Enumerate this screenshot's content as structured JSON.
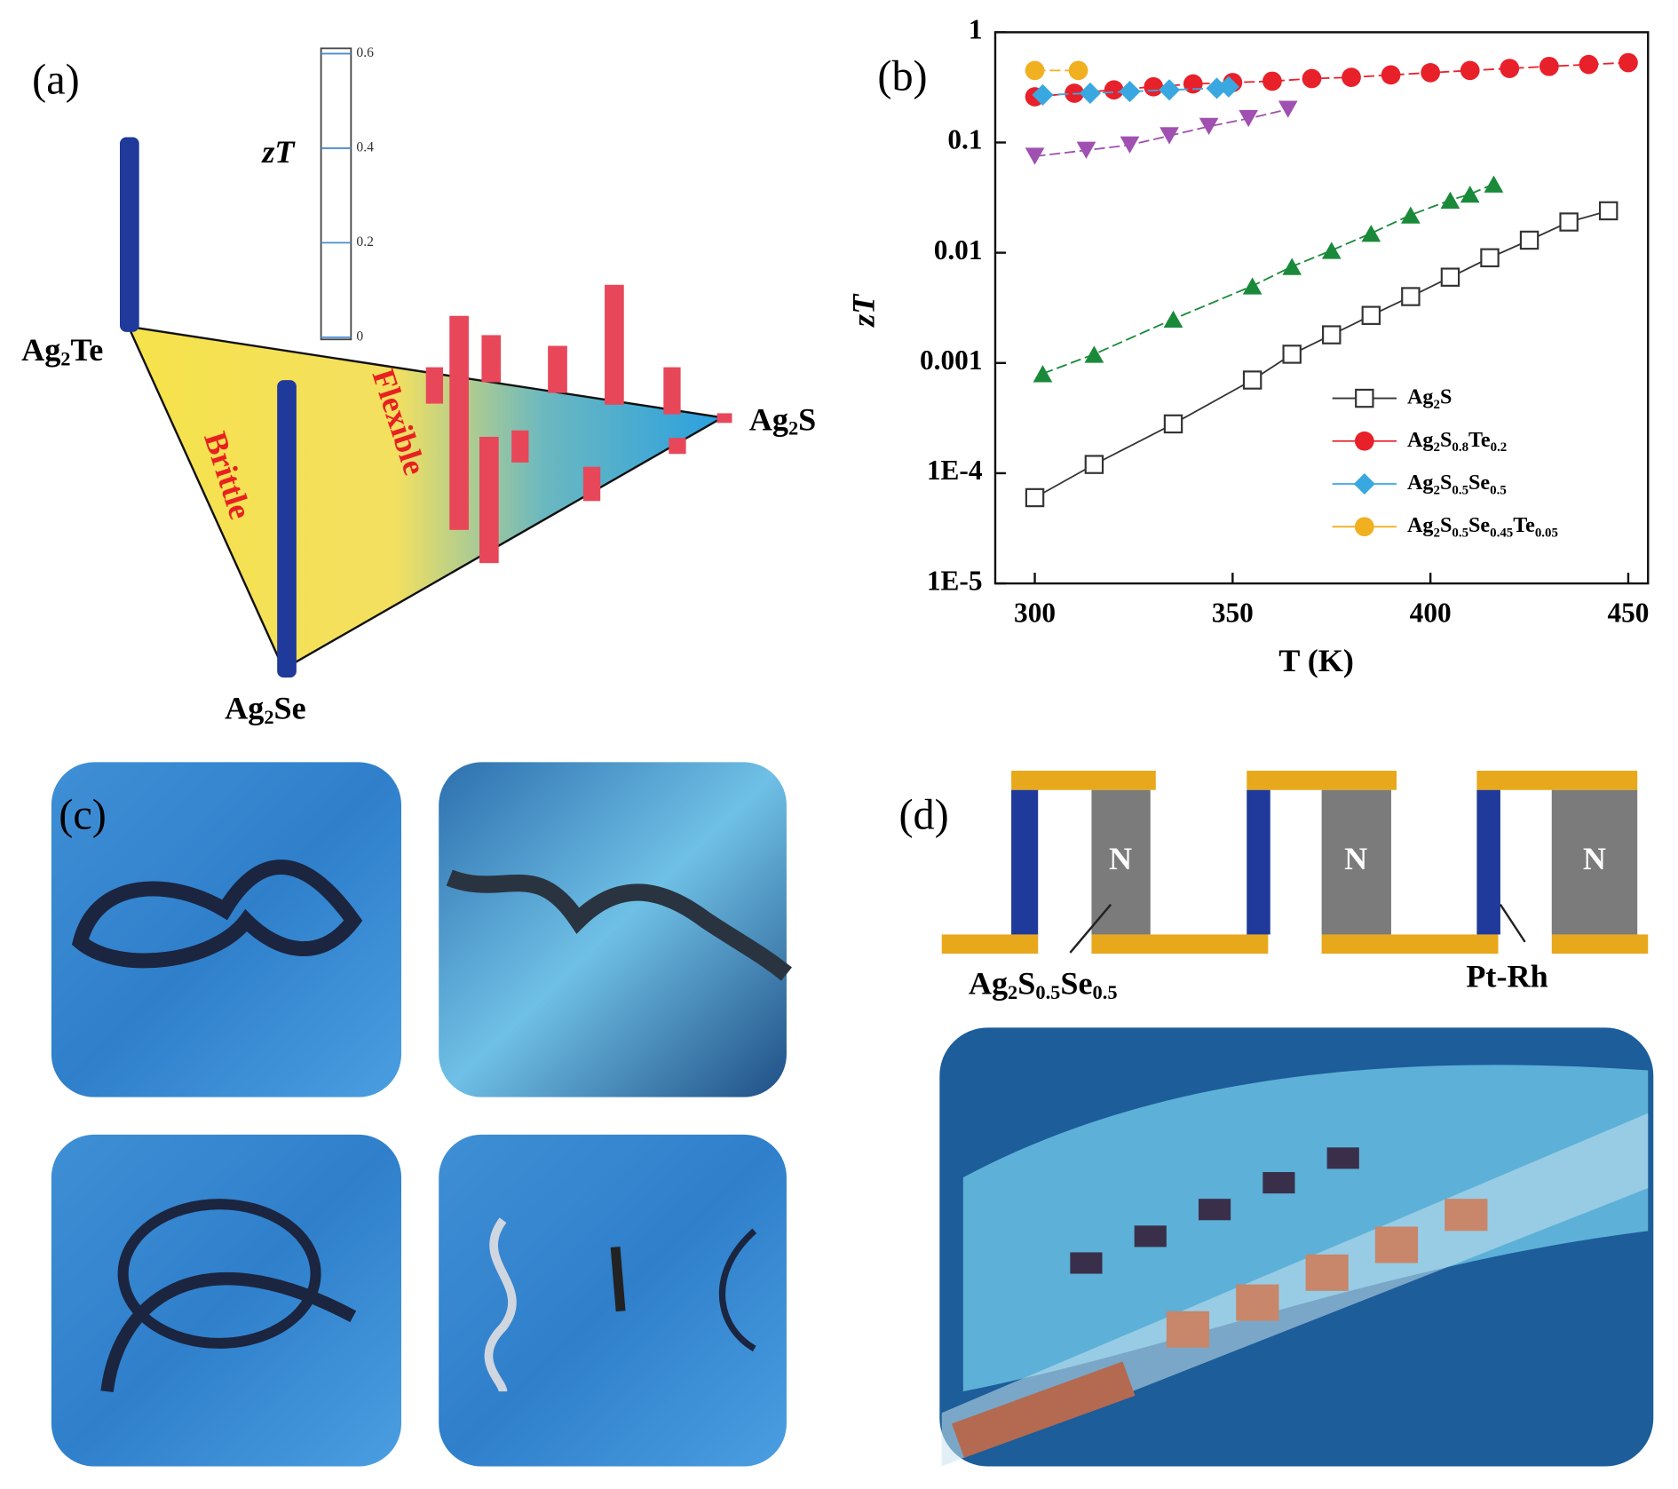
{
  "panel_a": {
    "label": "(a)",
    "colorbar_title": "zT",
    "colorbar_ticks": [
      0,
      0.2,
      0.4,
      0.6
    ],
    "vertices": [
      "Ag2Te",
      "Ag2S",
      "Ag2Se"
    ],
    "regions": [
      "Brittle",
      "Flexible"
    ]
  },
  "chart_data": {
    "type": "line",
    "panel_label": "(b)",
    "xlabel": "T (K)",
    "ylabel": "zT",
    "xlim": [
      290,
      455
    ],
    "xticks": [
      300,
      350,
      400,
      450
    ],
    "ylim": [
      1e-05,
      1
    ],
    "yticks": [
      {
        "value": 1e-05,
        "label": "1E-5"
      },
      {
        "value": 0.0001,
        "label": "1E-4"
      },
      0.001,
      0.01,
      0.1,
      1
    ],
    "log_y": true,
    "legend": "lower right",
    "series": [
      {
        "name": "Ag2S",
        "color": "#333333",
        "marker": "square-open",
        "x": [
          300,
          315,
          335,
          355,
          365,
          375,
          385,
          395,
          405,
          415,
          425,
          435,
          445
        ],
        "values": [
          6e-05,
          0.00012,
          0.00028,
          0.0007,
          0.0012,
          0.0018,
          0.0027,
          0.004,
          0.006,
          0.009,
          0.013,
          0.019,
          0.024
        ]
      },
      {
        "name": "Ag2S0.8Te0.2",
        "color": "#e8202a",
        "marker": "circle",
        "x": [
          300,
          310,
          320,
          330,
          340,
          350,
          360,
          370,
          380,
          390,
          400,
          410,
          420,
          430,
          440,
          450
        ],
        "values": [
          0.26,
          0.28,
          0.3,
          0.32,
          0.34,
          0.35,
          0.36,
          0.38,
          0.39,
          0.41,
          0.43,
          0.45,
          0.47,
          0.49,
          0.51,
          0.53
        ]
      },
      {
        "name": "Ag2S0.5Se0.5",
        "color": "#3aa8e0",
        "marker": "diamond",
        "x": [
          302,
          314,
          324,
          334,
          346,
          349
        ],
        "values": [
          0.27,
          0.28,
          0.29,
          0.3,
          0.31,
          0.32
        ]
      },
      {
        "name": "Ag2S0.5Se0.45Te0.05",
        "color": "#f0b020",
        "marker": "circle",
        "x": [
          300,
          311
        ],
        "values": [
          0.45,
          0.45
        ]
      },
      {
        "color": "#a050b0",
        "marker": "triangle-down",
        "x": [
          300,
          313,
          324,
          334,
          344,
          354,
          364
        ],
        "values": [
          0.075,
          0.085,
          0.095,
          0.115,
          0.14,
          0.165,
          0.2
        ]
      },
      {
        "color": "#1a8a3a",
        "marker": "triangle-up",
        "x": [
          302,
          315,
          335,
          355,
          365,
          375,
          385,
          395,
          405,
          410,
          416
        ],
        "values": [
          0.0008,
          0.0012,
          0.0025,
          0.005,
          0.0075,
          0.0105,
          0.015,
          0.022,
          0.03,
          0.034,
          0.042
        ]
      }
    ]
  },
  "panel_c": {
    "label": "(c)"
  },
  "panel_d": {
    "label": "(d)",
    "legs": [
      "N",
      "N",
      "N"
    ],
    "annotations": [
      "Ag2S0.5Se0.5",
      "Pt-Rh"
    ]
  }
}
